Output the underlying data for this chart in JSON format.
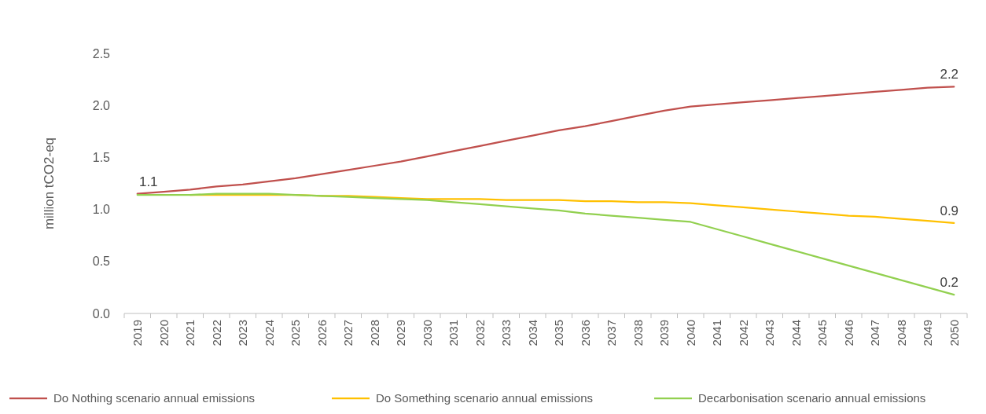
{
  "chart_data": {
    "type": "line",
    "ylabel": "million tCO2-eq",
    "categories": [
      "2019",
      "2020",
      "2021",
      "2022",
      "2023",
      "2024",
      "2025",
      "2026",
      "2027",
      "2028",
      "2029",
      "2030",
      "2031",
      "2032",
      "2033",
      "2034",
      "2035",
      "2036",
      "2037",
      "2038",
      "2039",
      "2040",
      "2041",
      "2042",
      "2043",
      "2044",
      "2045",
      "2046",
      "2047",
      "2048",
      "2049",
      "2050"
    ],
    "series": [
      {
        "name": "Do Nothing scenario annual emissions",
        "color": "#c0504d",
        "values": [
          1.15,
          1.17,
          1.19,
          1.22,
          1.24,
          1.27,
          1.3,
          1.34,
          1.38,
          1.42,
          1.46,
          1.51,
          1.56,
          1.61,
          1.66,
          1.71,
          1.76,
          1.8,
          1.85,
          1.9,
          1.95,
          1.99,
          2.01,
          2.03,
          2.05,
          2.07,
          2.09,
          2.11,
          2.13,
          2.15,
          2.17,
          2.18
        ],
        "value_labels": [
          "1.1",
          null,
          null,
          null,
          null,
          null,
          null,
          null,
          null,
          null,
          null,
          null,
          null,
          null,
          null,
          null,
          null,
          null,
          null,
          null,
          null,
          null,
          null,
          null,
          null,
          null,
          null,
          null,
          null,
          null,
          null,
          "2.2"
        ]
      },
      {
        "name": "Do Something scenario annual emissions",
        "color": "#ffc000",
        "values": [
          null,
          null,
          1.14,
          1.14,
          1.14,
          1.14,
          1.14,
          1.13,
          1.13,
          1.12,
          1.11,
          1.1,
          1.1,
          1.1,
          1.09,
          1.09,
          1.09,
          1.08,
          1.08,
          1.07,
          1.07,
          1.06,
          1.04,
          1.02,
          1.0,
          0.98,
          0.96,
          0.94,
          0.93,
          0.91,
          0.89,
          0.87
        ],
        "value_labels": [
          null,
          null,
          null,
          null,
          null,
          null,
          null,
          null,
          null,
          null,
          null,
          null,
          null,
          null,
          null,
          null,
          null,
          null,
          null,
          null,
          null,
          null,
          null,
          null,
          null,
          null,
          null,
          null,
          null,
          null,
          null,
          "0.9"
        ]
      },
      {
        "name": "Decarbonisation scenario annual emissions",
        "color": "#92d050",
        "values": [
          1.14,
          1.14,
          1.14,
          1.15,
          1.15,
          1.15,
          1.14,
          1.13,
          1.12,
          1.11,
          1.1,
          1.09,
          1.07,
          1.05,
          1.03,
          1.01,
          0.99,
          0.96,
          0.94,
          0.92,
          0.9,
          0.88,
          0.81,
          0.74,
          0.67,
          0.6,
          0.53,
          0.46,
          0.39,
          0.32,
          0.25,
          0.18
        ],
        "value_labels": [
          null,
          null,
          null,
          null,
          null,
          null,
          null,
          null,
          null,
          null,
          null,
          null,
          null,
          null,
          null,
          null,
          null,
          null,
          null,
          null,
          null,
          null,
          null,
          null,
          null,
          null,
          null,
          null,
          null,
          null,
          null,
          "0.2"
        ]
      }
    ],
    "ylim": [
      0,
      2.5
    ],
    "yticks": [
      {
        "value": 0,
        "label": "0.0"
      },
      {
        "value": 0.5,
        "label": "0.5"
      },
      {
        "value": 1,
        "label": "1.0"
      },
      {
        "value": 1.5,
        "label": "1.5"
      },
      {
        "value": 2,
        "label": "2.0"
      },
      {
        "value": 2.5,
        "label": "2.5"
      }
    ],
    "legend": "bottom",
    "marker": "none",
    "line_style": "solid"
  }
}
